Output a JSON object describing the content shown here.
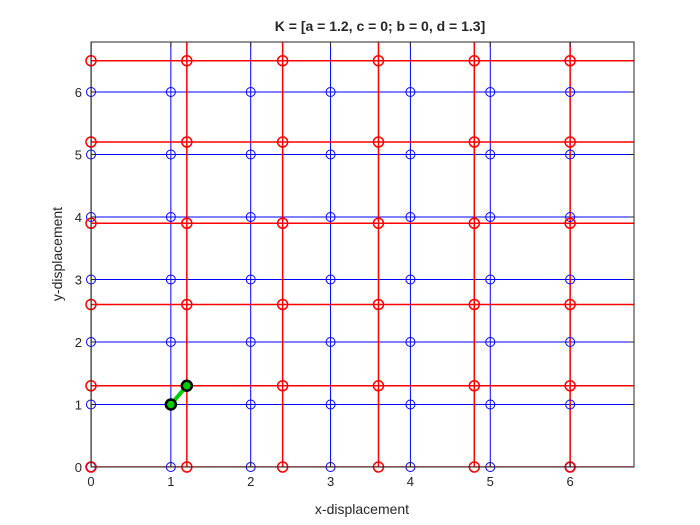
{
  "chart_data": {
    "type": "scatter",
    "title": "K = [a = 1.2, c = 0; b = 0, d = 1.3]",
    "xlabel": "x-displacement",
    "ylabel": "y-displacement",
    "xlim": [
      0,
      6.8
    ],
    "ylim": [
      0,
      6.8
    ],
    "xticks": [
      "0",
      "1",
      "2",
      "3",
      "4",
      "5",
      "6"
    ],
    "yticks": [
      "0",
      "1",
      "2",
      "3",
      "4",
      "5",
      "6"
    ],
    "grid": false,
    "matrix": {
      "a": 1.2,
      "b": 0,
      "c": 0,
      "d": 1.3
    },
    "series": [
      {
        "color": "#0000ff",
        "line_x": [
          0,
          1,
          2,
          3,
          4,
          5,
          6
        ],
        "line_y": [
          0,
          1,
          2,
          3,
          4,
          5,
          6
        ],
        "x": [
          0,
          1,
          2,
          3,
          4,
          5,
          6
        ],
        "y": [
          0,
          1,
          2,
          3,
          4,
          5,
          6
        ]
      },
      {
        "color": "#ff0000",
        "line_x": [
          0,
          1.2,
          2.4,
          3.6,
          4.8,
          6.0
        ],
        "line_y": [
          0,
          1.3,
          2.6,
          3.9,
          5.2,
          6.5
        ],
        "x": [
          0,
          1.2,
          2.4,
          3.6,
          4.8,
          6.0
        ],
        "y": [
          0,
          1.3,
          2.6,
          3.9,
          5.2,
          6.5
        ]
      }
    ],
    "highlight_vector": {
      "color": "#00cc00",
      "from": [
        1,
        1
      ],
      "to": [
        1.2,
        1.3
      ]
    }
  }
}
